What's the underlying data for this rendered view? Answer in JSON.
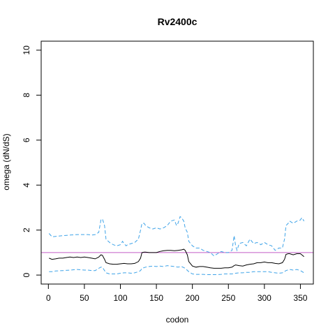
{
  "chart_data": {
    "type": "line",
    "title": "Rv2400c",
    "xlabel": "codon",
    "ylabel": "omega (dN/dS)",
    "xlim": [
      -10,
      368
    ],
    "ylim": [
      -0.4,
      10.4
    ],
    "xticks": [
      0,
      50,
      100,
      150,
      200,
      250,
      300,
      350
    ],
    "yticks": [
      0,
      2,
      4,
      6,
      8,
      10
    ],
    "grid": false,
    "reference_line": {
      "y": 1,
      "color": "#c25ec8"
    },
    "series": [
      {
        "line_style": "dashed",
        "color": "#3ea3e8",
        "x": [
          1,
          5,
          10,
          20,
          30,
          40,
          50,
          55,
          60,
          65,
          70,
          73,
          75,
          78,
          80,
          85,
          90,
          95,
          100,
          103,
          105,
          108,
          110,
          115,
          120,
          125,
          128,
          130,
          133,
          135,
          140,
          145,
          150,
          155,
          160,
          165,
          170,
          175,
          178,
          180,
          183,
          185,
          188,
          190,
          193,
          195,
          200,
          205,
          210,
          215,
          220,
          225,
          230,
          235,
          240,
          245,
          250,
          255,
          258,
          260,
          262,
          265,
          270,
          275,
          280,
          285,
          290,
          295,
          300,
          305,
          310,
          315,
          320,
          325,
          328,
          330,
          333,
          335,
          340,
          345,
          350,
          352,
          355
        ],
        "y": [
          1.85,
          1.7,
          1.72,
          1.75,
          1.78,
          1.8,
          1.8,
          1.8,
          1.78,
          1.8,
          1.9,
          2.45,
          2.5,
          2.2,
          1.6,
          1.45,
          1.35,
          1.3,
          1.35,
          1.5,
          1.4,
          1.3,
          1.35,
          1.4,
          1.45,
          1.6,
          2.0,
          2.3,
          2.3,
          2.2,
          2.1,
          2.05,
          2.1,
          2.05,
          2.1,
          2.2,
          2.4,
          2.45,
          2.2,
          2.3,
          2.6,
          2.55,
          2.4,
          2.1,
          1.9,
          1.5,
          1.3,
          1.2,
          1.2,
          1.1,
          1.05,
          1.0,
          0.85,
          0.95,
          1.05,
          1.0,
          1.0,
          1.1,
          1.75,
          1.3,
          1.1,
          1.4,
          1.45,
          1.3,
          1.6,
          1.4,
          1.45,
          1.35,
          1.45,
          1.35,
          1.3,
          1.1,
          1.2,
          1.2,
          1.6,
          2.2,
          2.3,
          2.4,
          2.3,
          2.4,
          2.45,
          2.55,
          2.4
        ]
      },
      {
        "line_style": "solid",
        "color": "#000000",
        "x": [
          1,
          5,
          10,
          15,
          20,
          25,
          30,
          35,
          40,
          45,
          50,
          55,
          60,
          65,
          70,
          73,
          75,
          78,
          80,
          85,
          90,
          95,
          100,
          105,
          110,
          115,
          120,
          125,
          128,
          130,
          133,
          135,
          140,
          145,
          150,
          155,
          160,
          165,
          170,
          175,
          180,
          185,
          188,
          190,
          193,
          195,
          200,
          205,
          210,
          215,
          220,
          225,
          230,
          235,
          240,
          245,
          250,
          255,
          258,
          260,
          265,
          270,
          275,
          280,
          285,
          290,
          295,
          300,
          305,
          310,
          315,
          320,
          325,
          328,
          330,
          333,
          335,
          340,
          345,
          350,
          352,
          355
        ],
        "y": [
          0.75,
          0.7,
          0.72,
          0.75,
          0.75,
          0.78,
          0.8,
          0.78,
          0.8,
          0.78,
          0.8,
          0.78,
          0.75,
          0.72,
          0.8,
          0.9,
          0.88,
          0.7,
          0.55,
          0.5,
          0.48,
          0.48,
          0.5,
          0.52,
          0.5,
          0.5,
          0.52,
          0.6,
          0.75,
          1.0,
          1.02,
          1.02,
          1.0,
          1.0,
          1.0,
          1.05,
          1.08,
          1.1,
          1.1,
          1.08,
          1.1,
          1.12,
          1.15,
          1.1,
          0.9,
          0.6,
          0.4,
          0.35,
          0.38,
          0.38,
          0.35,
          0.32,
          0.3,
          0.3,
          0.3,
          0.32,
          0.32,
          0.35,
          0.42,
          0.45,
          0.42,
          0.4,
          0.45,
          0.48,
          0.5,
          0.55,
          0.55,
          0.58,
          0.55,
          0.55,
          0.52,
          0.5,
          0.55,
          0.7,
          0.92,
          0.95,
          0.95,
          0.9,
          0.95,
          0.95,
          0.9,
          0.82
        ]
      },
      {
        "line_style": "dashed",
        "color": "#3ea3e8",
        "x": [
          1,
          5,
          10,
          20,
          30,
          40,
          50,
          55,
          60,
          65,
          70,
          73,
          75,
          78,
          80,
          85,
          90,
          95,
          100,
          105,
          110,
          115,
          120,
          125,
          128,
          130,
          135,
          140,
          145,
          150,
          155,
          160,
          165,
          170,
          175,
          180,
          185,
          190,
          195,
          200,
          205,
          210,
          215,
          220,
          225,
          230,
          235,
          240,
          245,
          250,
          255,
          260,
          265,
          270,
          275,
          280,
          285,
          290,
          295,
          300,
          305,
          310,
          315,
          320,
          325,
          330,
          335,
          340,
          345,
          350,
          355
        ],
        "y": [
          0.15,
          0.15,
          0.18,
          0.2,
          0.22,
          0.25,
          0.22,
          0.22,
          0.2,
          0.2,
          0.3,
          0.35,
          0.35,
          0.2,
          0.1,
          0.05,
          0.05,
          0.05,
          0.08,
          0.1,
          0.1,
          0.08,
          0.1,
          0.15,
          0.2,
          0.3,
          0.35,
          0.38,
          0.4,
          0.38,
          0.4,
          0.38,
          0.42,
          0.4,
          0.38,
          0.35,
          0.38,
          0.3,
          0.15,
          0.05,
          0.03,
          0.03,
          0.03,
          0.02,
          0.02,
          0.02,
          0.02,
          0.03,
          0.05,
          0.05,
          0.05,
          0.08,
          0.1,
          0.1,
          0.12,
          0.12,
          0.15,
          0.15,
          0.15,
          0.15,
          0.15,
          0.12,
          0.1,
          0.08,
          0.1,
          0.2,
          0.25,
          0.22,
          0.25,
          0.2,
          0.1
        ]
      }
    ]
  }
}
